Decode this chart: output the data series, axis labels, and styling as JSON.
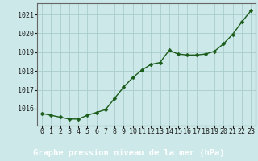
{
  "x": [
    0,
    1,
    2,
    3,
    4,
    5,
    6,
    7,
    8,
    9,
    10,
    11,
    12,
    13,
    14,
    15,
    16,
    17,
    18,
    19,
    20,
    21,
    22,
    23
  ],
  "y": [
    1015.75,
    1015.65,
    1015.55,
    1015.45,
    1015.45,
    1015.65,
    1015.8,
    1015.95,
    1016.55,
    1017.15,
    1017.65,
    1018.05,
    1018.35,
    1018.45,
    1019.1,
    1018.9,
    1018.85,
    1018.85,
    1018.9,
    1019.05,
    1019.45,
    1019.95,
    1020.6,
    1021.2
  ],
  "line_color": "#1a5c1a",
  "marker": "D",
  "marker_size": 2.5,
  "bg_color": "#cce8e8",
  "grid_color": "#aacccc",
  "bottom_bar_color": "#2d6b2d",
  "xlabel": "Graphe pression niveau de la mer (hPa)",
  "xlabel_fontsize": 7.5,
  "ylabel_ticks": [
    1016,
    1017,
    1018,
    1019,
    1020,
    1021
  ],
  "xlim": [
    -0.5,
    23.5
  ],
  "ylim": [
    1015.1,
    1021.6
  ],
  "xtick_labels": [
    "0",
    "1",
    "2",
    "3",
    "4",
    "5",
    "6",
    "7",
    "8",
    "9",
    "10",
    "11",
    "12",
    "13",
    "14",
    "15",
    "16",
    "17",
    "18",
    "19",
    "20",
    "21",
    "22",
    "23"
  ],
  "tick_fontsize": 6.0,
  "spine_color": "#666666",
  "line_width": 1.0
}
